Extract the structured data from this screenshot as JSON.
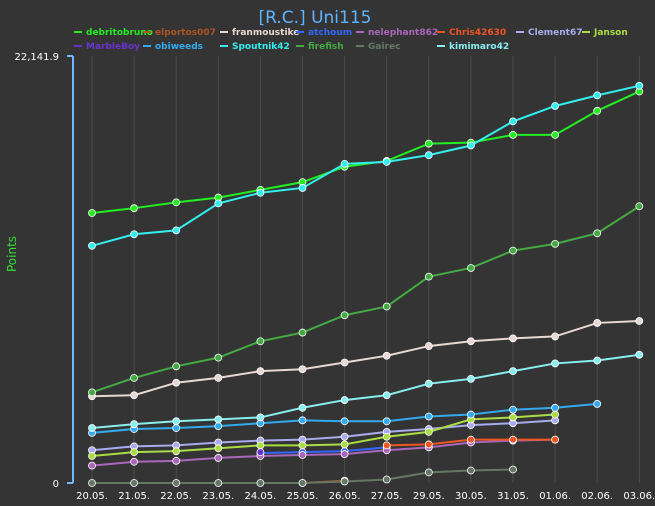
{
  "chart_data": {
    "type": "line",
    "title": "[R.C.] Uni115",
    "ylabel": "Points",
    "xlabel": "",
    "ylim": [
      0,
      22141.9
    ],
    "yticks": [
      "0",
      "22,141.9"
    ],
    "grid": "vertical",
    "legend_placement": "top",
    "categories": [
      "20.05.",
      "21.05.",
      "22.05.",
      "23.05.",
      "24.05.",
      "25.05.",
      "26.05.",
      "27.05.",
      "29.05.",
      "30.05.",
      "31.05.",
      "01.06.",
      "02.06.",
      "03.06."
    ],
    "series": [
      {
        "name": "debritobruno",
        "color": "#22ee22",
        "values": [
          14000,
          14250,
          14550,
          14800,
          15200,
          15600,
          16400,
          16700,
          17600,
          17650,
          18050,
          18050,
          19300,
          20300
        ]
      },
      {
        "name": "elportos007",
        "color": "#aa5522",
        "values": [
          null,
          null,
          null,
          null,
          null,
          0,
          120,
          null,
          null,
          null,
          null,
          null,
          null,
          null
        ]
      },
      {
        "name": "franmoustike",
        "color": "#e8d8d2",
        "values": [
          4500,
          4550,
          5200,
          5450,
          5800,
          5900,
          6250,
          6600,
          7100,
          7350,
          7500,
          7600,
          8300,
          8400
        ]
      },
      {
        "name": "atchoum",
        "color": "#3366ff",
        "values": [
          null,
          null,
          null,
          null,
          1550,
          1600,
          1650,
          1850,
          null,
          null,
          null,
          null,
          null,
          null
        ]
      },
      {
        "name": "nelephant862",
        "color": "#aa66bb",
        "values": [
          900,
          1100,
          1150,
          1300,
          1400,
          1450,
          1500,
          1700,
          1850,
          2100,
          2200,
          2250,
          null,
          null
        ]
      },
      {
        "name": "Chris42630",
        "color": "#ee5522",
        "values": [
          null,
          null,
          null,
          null,
          null,
          null,
          null,
          1950,
          2000,
          2250,
          2250,
          2250,
          null,
          null
        ]
      },
      {
        "name": "Clement67",
        "color": "#aaaaee",
        "values": [
          1700,
          1900,
          1950,
          2100,
          2200,
          2250,
          2400,
          2650,
          2800,
          3000,
          3100,
          3250,
          null,
          null
        ]
      },
      {
        "name": "Janson",
        "color": "#aadd44",
        "values": [
          1400,
          1600,
          1650,
          1800,
          1950,
          1950,
          2000,
          2400,
          2650,
          3300,
          3400,
          3550,
          null,
          null
        ]
      },
      {
        "name": "MarbleBoy",
        "color": "#6633cc",
        "values": [
          null,
          null,
          null,
          null,
          1600,
          null,
          null,
          null,
          null,
          null,
          null,
          null,
          null,
          null
        ]
      },
      {
        "name": "obiweeds",
        "color": "#33aaee",
        "values": [
          2600,
          2800,
          2850,
          2950,
          3100,
          3250,
          3200,
          3200,
          3450,
          3550,
          3800,
          3900,
          4100,
          null
        ]
      },
      {
        "name": "Spoutnik42",
        "color": "#33eeee",
        "values": [
          12300,
          12900,
          13100,
          14500,
          15050,
          15300,
          16550,
          16650,
          17000,
          17500,
          18750,
          19550,
          20100,
          20600
        ]
      },
      {
        "name": "firefish",
        "color": "#44aa44",
        "values": [
          4700,
          5450,
          6050,
          6500,
          7350,
          7800,
          8700,
          9150,
          10700,
          11150,
          12050,
          12400,
          12950,
          14350
        ]
      },
      {
        "name": "Gairec",
        "color": "#667766",
        "values": [
          0,
          0,
          0,
          0,
          0,
          0,
          80,
          180,
          550,
          650,
          700,
          null,
          null,
          null
        ]
      },
      {
        "name": "kimimaro42",
        "color": "#88eeee",
        "values": [
          2850,
          3050,
          3200,
          3300,
          3400,
          3900,
          4300,
          4550,
          5150,
          5400,
          5800,
          6200,
          6350,
          6650
        ]
      }
    ]
  }
}
